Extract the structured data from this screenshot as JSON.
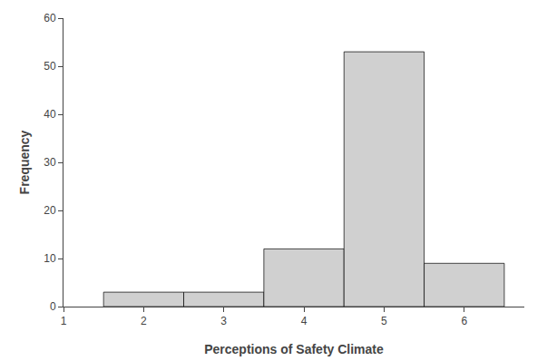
{
  "chart_data": {
    "type": "histogram",
    "bins": [
      1.5,
      2.5,
      3.5,
      4.5,
      5.5,
      6.5
    ],
    "values": [
      3,
      3,
      12,
      53,
      9
    ],
    "color": "#d0d0d0",
    "xlabel": "Perceptions of Safety Climate",
    "ylabel": "Frequency",
    "xlim": [
      1.0,
      6.75
    ],
    "ylim": [
      0,
      60
    ],
    "xticks": [
      1,
      2,
      3,
      4,
      5,
      6
    ],
    "yticks": [
      0,
      10,
      20,
      30,
      40,
      50,
      60
    ],
    "grid": false
  }
}
